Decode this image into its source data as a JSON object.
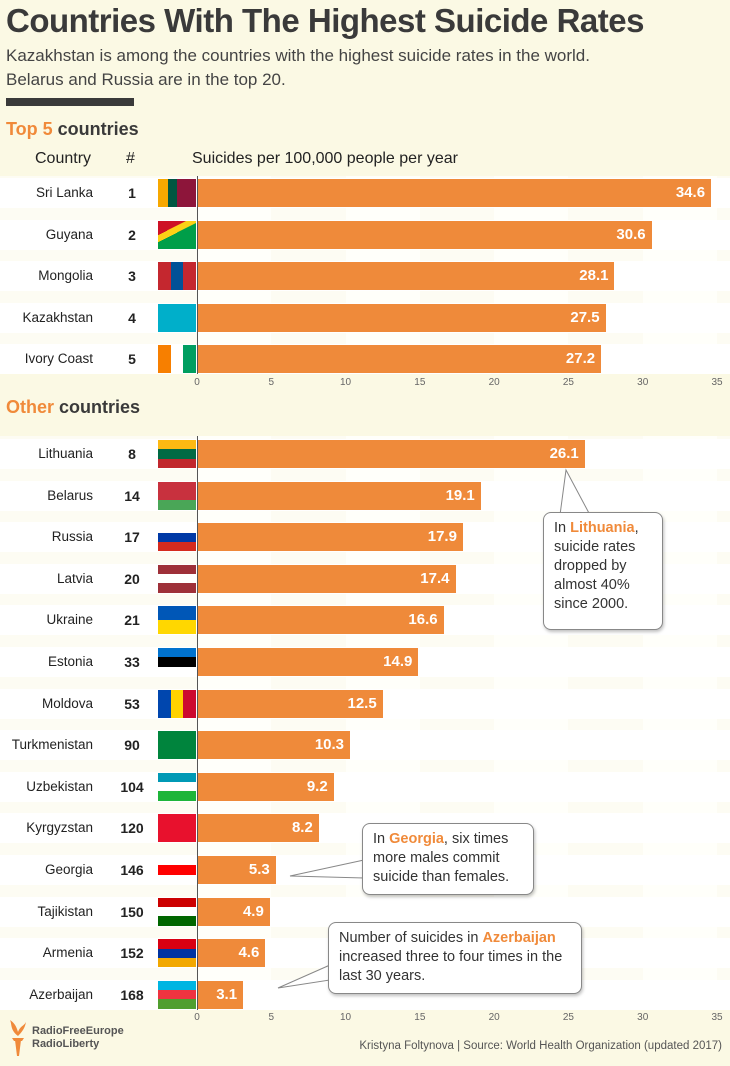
{
  "header": {
    "title": "Countries With The Highest Suicide Rates",
    "subtitle_line1": "Kazakhstan is among the countries with the highest suicide rates in the world.",
    "subtitle_line2": "Belarus and Russia are in the top 20."
  },
  "sections": {
    "top_hl": "Top 5",
    "top_rest": " countries",
    "other_hl": "Other",
    "other_rest": " countries"
  },
  "columns": {
    "country": "Country",
    "rank": "#",
    "metric": "Suicides per 100,000 people per year"
  },
  "colors": {
    "bar": "#ef8a3a",
    "accent": "#f08a3a",
    "background": "#fbf9e4"
  },
  "chart_data": [
    {
      "type": "bar",
      "orientation": "horizontal",
      "title": "Top 5 countries",
      "xlabel": "Suicides per 100,000 people per year",
      "xlim": [
        0,
        35
      ],
      "xticks": [
        "0",
        "5",
        "10",
        "15",
        "20",
        "25",
        "30",
        "35"
      ],
      "categories": [
        "Sri Lanka",
        "Guyana",
        "Mongolia",
        "Kazakhstan",
        "Ivory Coast"
      ],
      "ranks": [
        "1",
        "2",
        "3",
        "4",
        "5"
      ],
      "values": [
        34.6,
        30.6,
        28.1,
        27.5,
        27.2
      ],
      "labels": [
        "34.6",
        "30.6",
        "28.1",
        "27.5",
        "27.2"
      ],
      "flags": [
        [
          "v",
          "#f7a800",
          "#005641",
          "#8d153a",
          "#8d153a"
        ],
        [
          "d",
          "#009e49",
          "#fcd116",
          "#ce1126"
        ],
        [
          "v",
          "#c4272f",
          "#015197",
          "#c4272f"
        ],
        [
          "h",
          "#00afca",
          "#00afca"
        ],
        [
          "v",
          "#f77f00",
          "#ffffff",
          "#009e60"
        ]
      ]
    },
    {
      "type": "bar",
      "orientation": "horizontal",
      "title": "Other countries",
      "xlim": [
        0,
        35
      ],
      "xticks": [
        "0",
        "5",
        "10",
        "15",
        "20",
        "25",
        "30",
        "35"
      ],
      "categories": [
        "Lithuania",
        "Belarus",
        "Russia",
        "Latvia",
        "Ukraine",
        "Estonia",
        "Moldova",
        "Turkmenistan",
        "Uzbekistan",
        "Kyrgyzstan",
        "Georgia",
        "Tajikistan",
        "Armenia",
        "Azerbaijan"
      ],
      "ranks": [
        "8",
        "14",
        "17",
        "20",
        "21",
        "33",
        "53",
        "90",
        "104",
        "120",
        "146",
        "150",
        "152",
        "168"
      ],
      "values": [
        26.1,
        19.1,
        17.9,
        17.4,
        16.6,
        14.9,
        12.5,
        10.3,
        9.2,
        8.2,
        5.3,
        4.9,
        4.6,
        3.1
      ],
      "labels": [
        "26.1",
        "19.1",
        "17.9",
        "17.4",
        "16.6",
        "14.9",
        "12.5",
        "10.3",
        "9.2",
        "8.2",
        "5.3",
        "4.9",
        "4.6",
        "3.1"
      ],
      "flags": [
        [
          "h",
          "#fdb913",
          "#006a44",
          "#c1272d"
        ],
        [
          "h",
          "#c8313e",
          "#c8313e",
          "#4aa657"
        ],
        [
          "h",
          "#ffffff",
          "#0039a6",
          "#d52b1e"
        ],
        [
          "h",
          "#9e3039",
          "#ffffff",
          "#9e3039"
        ],
        [
          "h",
          "#0057b7",
          "#ffd700"
        ],
        [
          "h",
          "#0072ce",
          "#000000",
          "#ffffff"
        ],
        [
          "v",
          "#0046ae",
          "#ffd200",
          "#cc092f"
        ],
        [
          "h",
          "#00843d",
          "#00843d"
        ],
        [
          "h",
          "#0099b5",
          "#ffffff",
          "#1eb53a"
        ],
        [
          "h",
          "#e8112d",
          "#e8112d"
        ],
        [
          "h",
          "#ffffff",
          "#ff0000",
          "#ffffff"
        ],
        [
          "h",
          "#cc0000",
          "#ffffff",
          "#006600"
        ],
        [
          "h",
          "#d90012",
          "#0033a0",
          "#f2a800"
        ],
        [
          "h",
          "#00b5e2",
          "#ef3340",
          "#509e2f"
        ]
      ]
    }
  ],
  "callouts": {
    "lithuania": {
      "pre": "In ",
      "hl": "Lithuania",
      "post": ", suicide rates dropped by almost 40% since 2000."
    },
    "georgia": {
      "pre": "In ",
      "hl": "Georgia",
      "post": ", six times more males commit suicide than females."
    },
    "azerbaijan": {
      "pre": "Number of suicides in ",
      "hl": "Azerbaijan",
      "post": " increased three to four times in the last 30 years."
    }
  },
  "footer": {
    "logo_line1": "RadioFreeEurope",
    "logo_line2": "RadioLiberty",
    "credit": "Kristyna Foltynova | Source: World Health Organization (updated 2017)"
  }
}
